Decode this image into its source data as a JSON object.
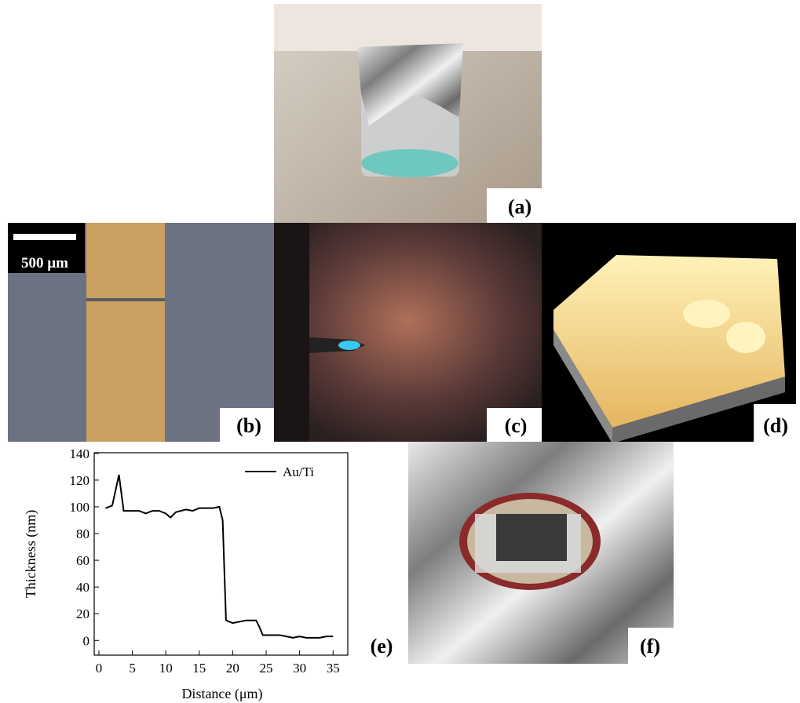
{
  "panels": {
    "a": {
      "label": "(a)"
    },
    "b": {
      "label": "(b)",
      "scale_bar": "500 µm"
    },
    "c": {
      "label": "(c)"
    },
    "d": {
      "label": "(d)"
    },
    "e": {
      "label": "(e)"
    },
    "f": {
      "label": "(f)"
    }
  },
  "chart_data": {
    "type": "line",
    "x_label": "Distance (μm)",
    "y_label": "Thickness (nm)",
    "legend": "upper right",
    "xlim": [
      -0.7,
      37.2
    ],
    "ylim": [
      -11,
      140.5
    ],
    "xticks": [
      0,
      5,
      10,
      15,
      20,
      25,
      30,
      35
    ],
    "yticks": [
      0,
      20,
      40,
      60,
      80,
      100,
      120,
      140
    ],
    "x": [
      1,
      2,
      3,
      3.7,
      5,
      6,
      7,
      8,
      9,
      10,
      10.7,
      11.5,
      13,
      14,
      15,
      16,
      17,
      18,
      18.5,
      19,
      20,
      21,
      22,
      23,
      23.5,
      24,
      24.5,
      26,
      27,
      28,
      29,
      30,
      31,
      32,
      33,
      34,
      35
    ],
    "series": [
      {
        "name": "Au/Ti",
        "color": "#000000",
        "values": [
          99,
          101,
          124,
          97,
          97,
          97,
          95,
          97,
          97,
          95,
          92,
          96,
          98,
          97,
          99,
          99,
          99,
          100,
          90,
          15,
          13,
          14,
          15,
          15,
          15,
          10,
          4,
          4,
          4,
          3,
          2,
          3,
          2,
          2,
          2,
          3,
          3
        ]
      }
    ]
  }
}
